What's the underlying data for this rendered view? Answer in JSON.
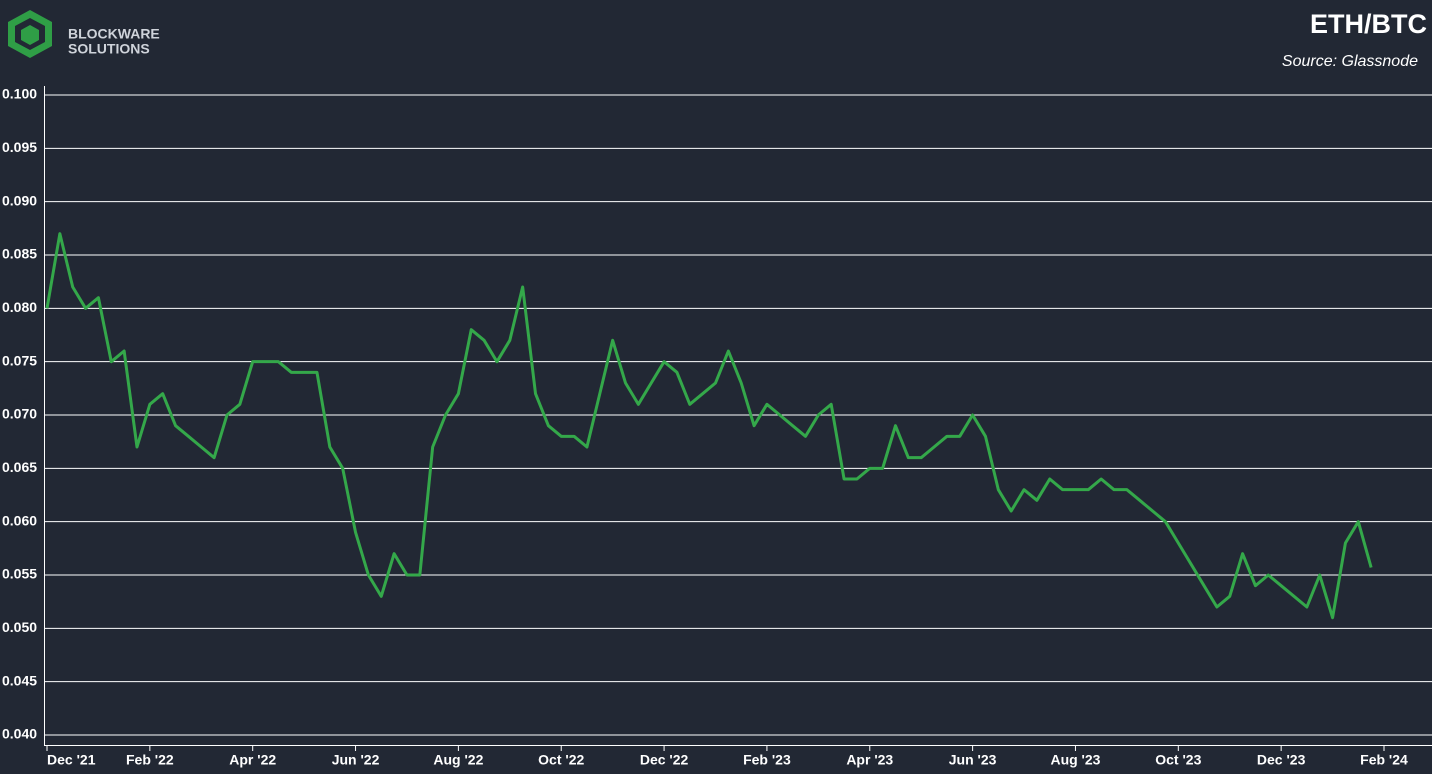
{
  "logo": {
    "line1": "BLOCKWARE",
    "line2": "SOLUTIONS"
  },
  "chart_data": {
    "type": "line",
    "title": "ETH/BTC",
    "source": "Source: Glassnode",
    "color": "#34a84a",
    "grid": true,
    "ylim": [
      0.04,
      0.1
    ],
    "yticks": [
      {
        "value": 0.04,
        "label": "0.040"
      },
      0.045,
      {
        "value": 0.05,
        "label": "0.050"
      },
      0.055,
      {
        "value": 0.06,
        "label": "0.060"
      },
      0.065,
      {
        "value": 0.07,
        "label": "0.070"
      },
      0.075,
      {
        "value": 0.08,
        "label": "0.080"
      },
      0.085,
      {
        "value": 0.09,
        "label": "0.090"
      },
      0.095,
      {
        "value": 0.1,
        "label": "0.100"
      }
    ],
    "categories": [
      "Dec '21",
      null,
      null,
      null,
      null,
      null,
      null,
      null,
      "Feb '22",
      null,
      null,
      null,
      null,
      null,
      null,
      null,
      "Apr '22",
      null,
      null,
      null,
      null,
      null,
      null,
      null,
      "Jun '22",
      null,
      null,
      null,
      null,
      null,
      null,
      null,
      "Aug '22",
      null,
      null,
      null,
      null,
      null,
      null,
      null,
      "Oct '22",
      null,
      null,
      null,
      null,
      null,
      null,
      null,
      "Dec '22",
      null,
      null,
      null,
      null,
      null,
      null,
      null,
      "Feb '23",
      null,
      null,
      null,
      null,
      null,
      null,
      null,
      "Apr '23",
      null,
      null,
      null,
      null,
      null,
      null,
      null,
      "Jun '23",
      null,
      null,
      null,
      null,
      null,
      null,
      null,
      "Aug '23",
      null,
      null,
      null,
      null,
      null,
      null,
      null,
      "Oct '23",
      null,
      null,
      null,
      null,
      null,
      null,
      null,
      "Dec '23",
      null,
      null,
      null,
      null,
      null,
      null,
      null,
      "Feb '24"
    ],
    "values": [
      0.08,
      0.087,
      0.082,
      0.08,
      0.081,
      0.075,
      0.076,
      0.067,
      0.071,
      0.072,
      0.069,
      0.068,
      0.067,
      0.066,
      0.07,
      0.071,
      0.075,
      0.075,
      0.075,
      0.074,
      0.074,
      0.074,
      0.067,
      0.065,
      0.059,
      0.055,
      0.053,
      0.057,
      0.055,
      0.055,
      0.067,
      0.07,
      0.072,
      0.078,
      0.077,
      0.075,
      0.077,
      0.082,
      0.072,
      0.069,
      0.068,
      0.068,
      0.067,
      0.072,
      0.077,
      0.073,
      0.071,
      0.073,
      0.075,
      0.074,
      0.071,
      0.072,
      0.073,
      0.076,
      0.073,
      0.069,
      0.071,
      0.07,
      0.069,
      0.068,
      0.07,
      0.071,
      0.064,
      0.064,
      0.065,
      0.065,
      0.069,
      0.066,
      0.066,
      0.067,
      0.068,
      0.068,
      0.07,
      0.068,
      0.063,
      0.061,
      0.063,
      0.062,
      0.064,
      0.063,
      0.063,
      0.063,
      0.064,
      0.063,
      0.063,
      0.062,
      0.061,
      0.06,
      0.058,
      0.056,
      0.054,
      0.052,
      0.053,
      0.057,
      0.054,
      0.055,
      0.054,
      0.053,
      0.052,
      0.055,
      0.051,
      0.058,
      0.06,
      0.0557,
      null
    ]
  }
}
